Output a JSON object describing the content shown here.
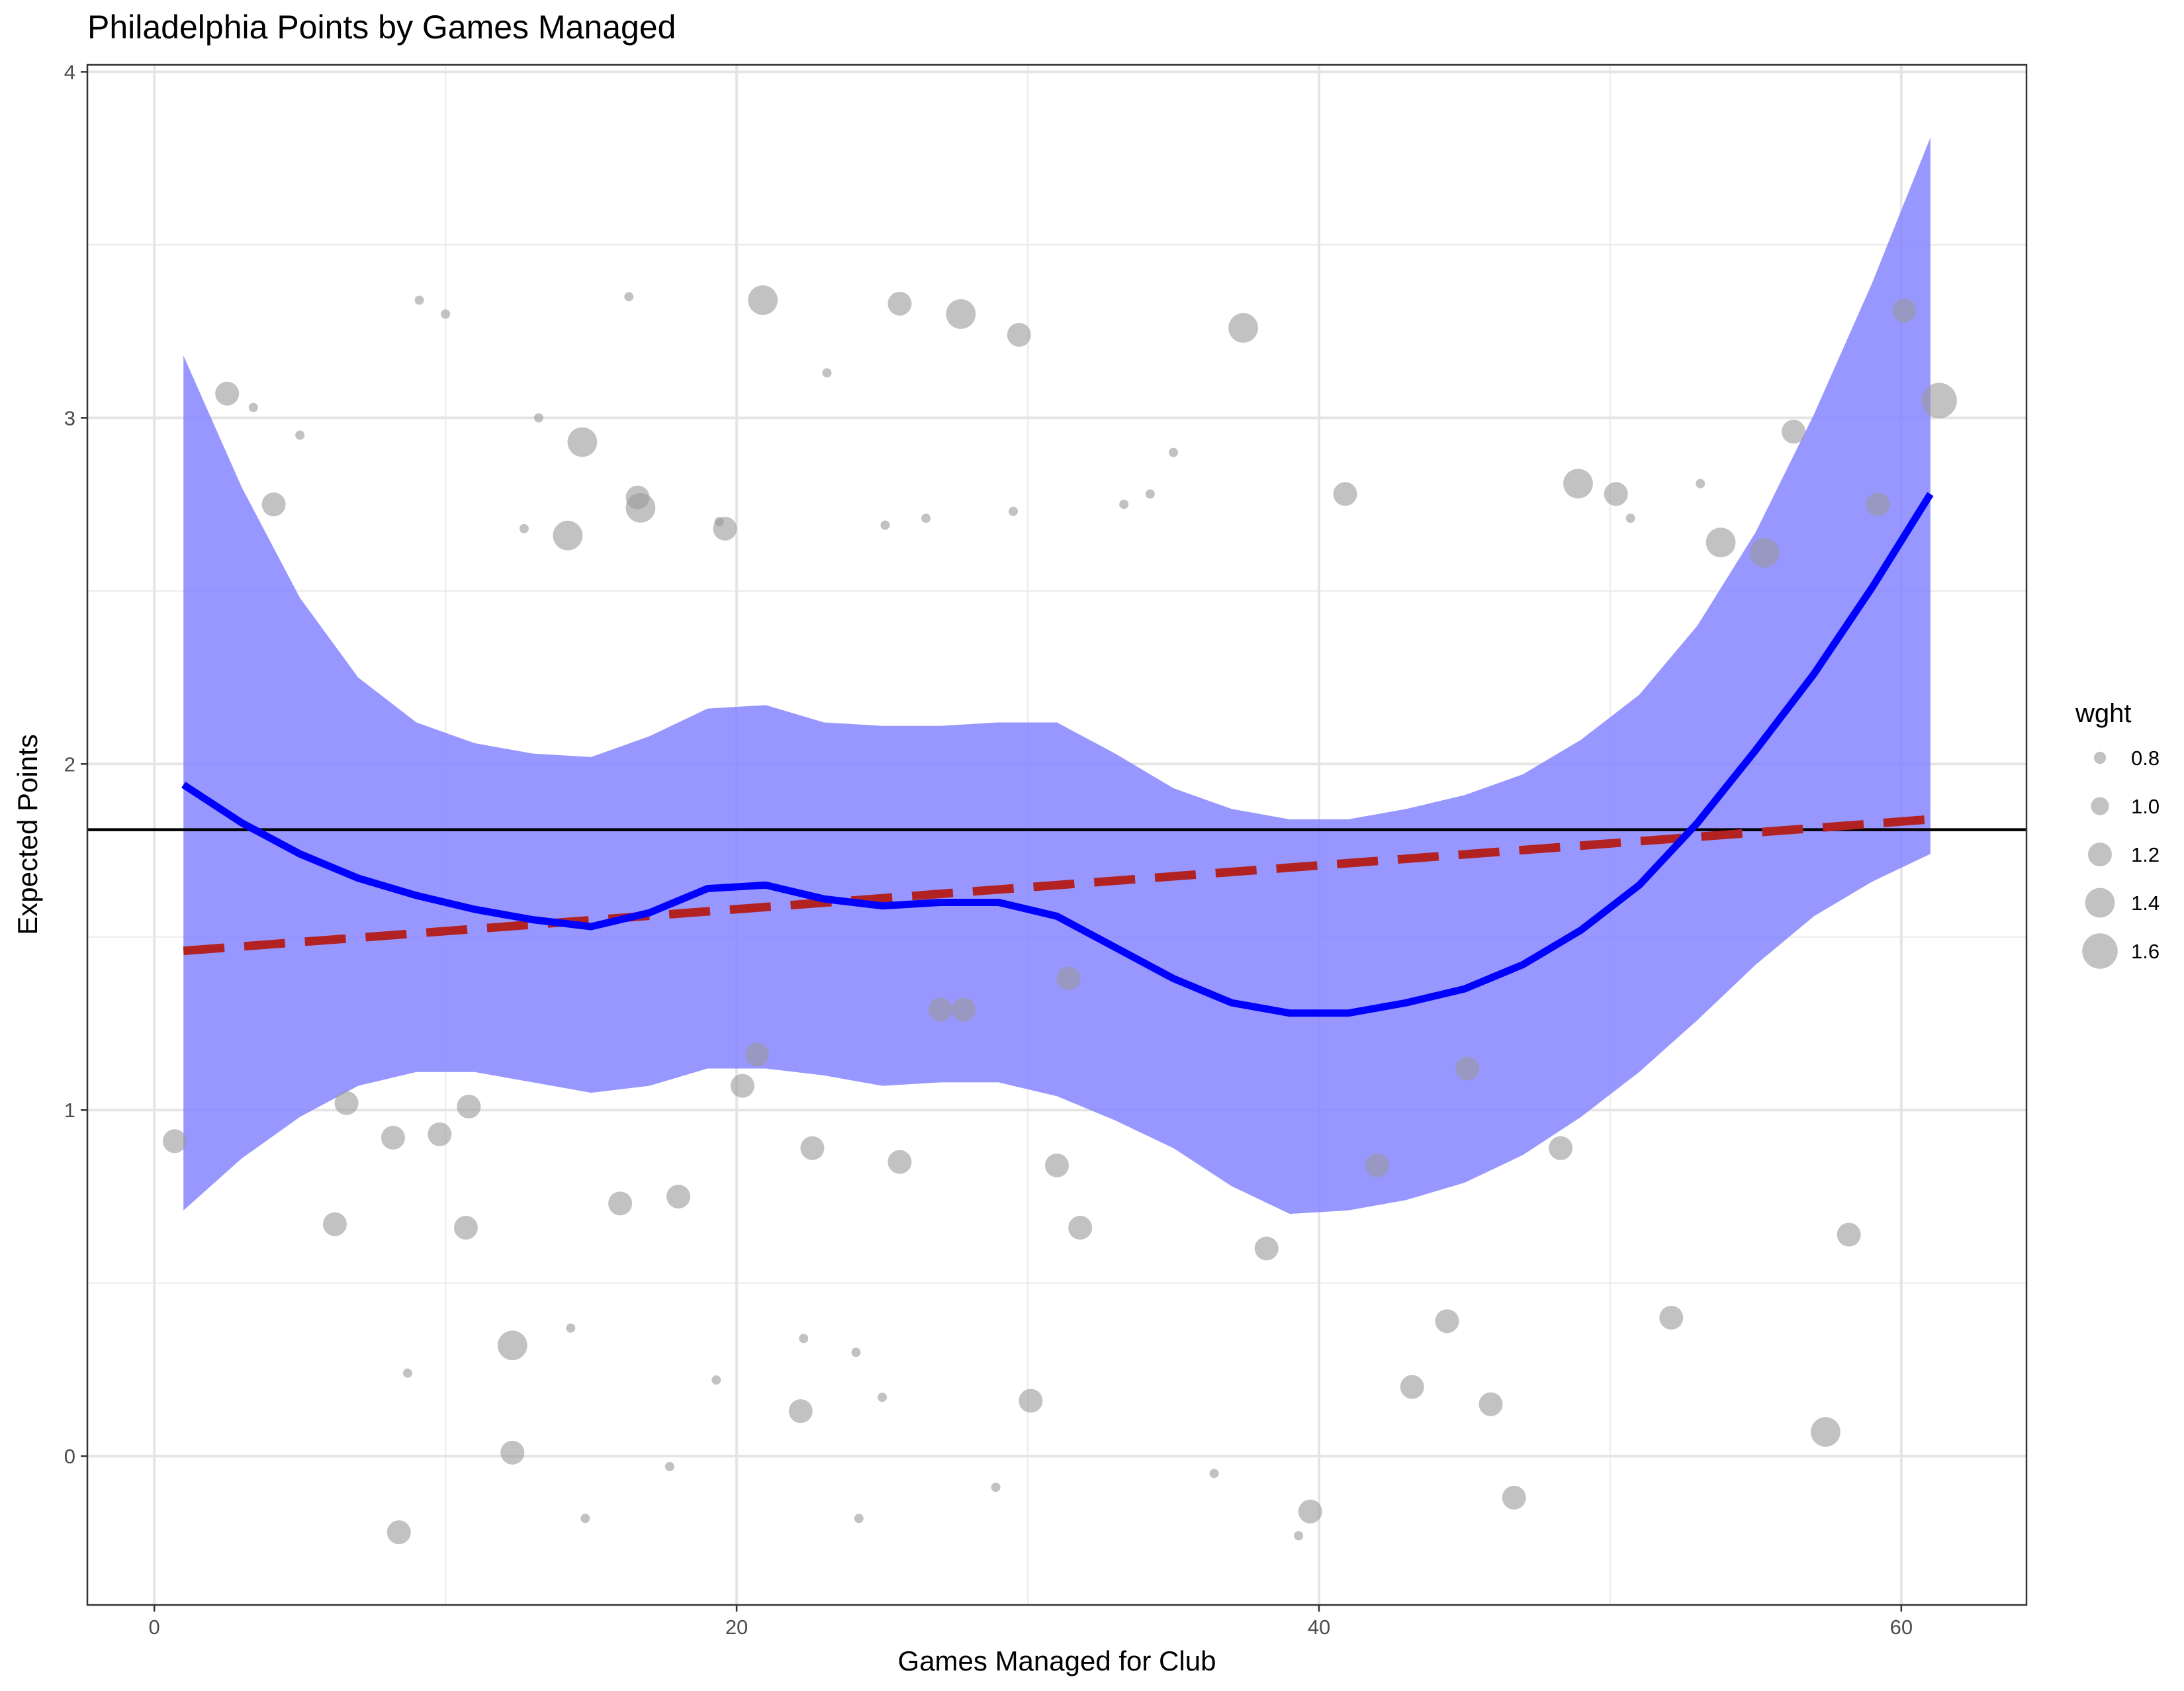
{
  "chart_data": {
    "type": "scatter",
    "title": "Philadelphia Points by Games Managed",
    "xlabel": "Games Managed for Club",
    "ylabel": "Expected Points",
    "xlim": [
      -2.3,
      64.3
    ],
    "ylim": [
      -0.43,
      4.02
    ],
    "x_ticks": [
      0,
      20,
      40,
      60
    ],
    "y_ticks": [
      0,
      1,
      2,
      3,
      4
    ],
    "grid": true,
    "colors": {
      "points": "#999999",
      "smooth_line": "#0000ff",
      "confidence_band": "#8080ff",
      "trend_line": "#b22222",
      "reference_line": "#000000"
    },
    "points": [
      {
        "x": 0.7,
        "y": 0.91,
        "w": 1.2
      },
      {
        "x": 2.5,
        "y": 3.07,
        "w": 1.2
      },
      {
        "x": 3.4,
        "y": 3.03,
        "w": 0.7
      },
      {
        "x": 4.1,
        "y": 2.75,
        "w": 1.2
      },
      {
        "x": 5.0,
        "y": 2.95,
        "w": 0.7
      },
      {
        "x": 6.2,
        "y": 0.67,
        "w": 1.2
      },
      {
        "x": 6.6,
        "y": 1.02,
        "w": 1.2
      },
      {
        "x": 8.2,
        "y": 0.92,
        "w": 1.2
      },
      {
        "x": 8.4,
        "y": -0.22,
        "w": 1.2
      },
      {
        "x": 8.7,
        "y": 0.24,
        "w": 0.7
      },
      {
        "x": 9.1,
        "y": 3.34,
        "w": 0.7
      },
      {
        "x": 9.8,
        "y": 0.93,
        "w": 1.2
      },
      {
        "x": 10.0,
        "y": 3.3,
        "w": 0.7
      },
      {
        "x": 10.7,
        "y": 0.66,
        "w": 1.2
      },
      {
        "x": 10.8,
        "y": 1.01,
        "w": 1.2
      },
      {
        "x": 12.3,
        "y": 0.32,
        "w": 1.4
      },
      {
        "x": 12.3,
        "y": 0.01,
        "w": 1.2
      },
      {
        "x": 12.7,
        "y": 2.68,
        "w": 0.7
      },
      {
        "x": 13.2,
        "y": 3.0,
        "w": 0.7
      },
      {
        "x": 14.2,
        "y": 2.66,
        "w": 1.4
      },
      {
        "x": 14.3,
        "y": 0.37,
        "w": 0.7
      },
      {
        "x": 14.7,
        "y": 2.93,
        "w": 1.4
      },
      {
        "x": 14.8,
        "y": -0.18,
        "w": 0.7
      },
      {
        "x": 16.0,
        "y": 0.73,
        "w": 1.2
      },
      {
        "x": 16.3,
        "y": 3.35,
        "w": 0.7
      },
      {
        "x": 16.6,
        "y": 2.77,
        "w": 1.2
      },
      {
        "x": 16.7,
        "y": 2.74,
        "w": 1.4
      },
      {
        "x": 17.7,
        "y": -0.03,
        "w": 0.7
      },
      {
        "x": 18.0,
        "y": 0.75,
        "w": 1.2
      },
      {
        "x": 19.3,
        "y": 0.22,
        "w": 0.7
      },
      {
        "x": 19.4,
        "y": 2.7,
        "w": 0.7
      },
      {
        "x": 19.6,
        "y": 2.68,
        "w": 1.2
      },
      {
        "x": 20.2,
        "y": 1.07,
        "w": 1.2
      },
      {
        "x": 20.7,
        "y": 1.16,
        "w": 1.2
      },
      {
        "x": 20.9,
        "y": 3.34,
        "w": 1.4
      },
      {
        "x": 22.2,
        "y": 0.13,
        "w": 1.2
      },
      {
        "x": 22.3,
        "y": 0.34,
        "w": 0.7
      },
      {
        "x": 22.6,
        "y": 0.89,
        "w": 1.2
      },
      {
        "x": 23.1,
        "y": 3.13,
        "w": 0.7
      },
      {
        "x": 24.1,
        "y": 0.3,
        "w": 0.7
      },
      {
        "x": 24.2,
        "y": -0.18,
        "w": 0.7
      },
      {
        "x": 25.0,
        "y": 0.17,
        "w": 0.7
      },
      {
        "x": 25.1,
        "y": 2.69,
        "w": 0.7
      },
      {
        "x": 25.6,
        "y": 0.85,
        "w": 1.2
      },
      {
        "x": 25.6,
        "y": 3.33,
        "w": 1.2
      },
      {
        "x": 26.5,
        "y": 2.71,
        "w": 0.7
      },
      {
        "x": 27.0,
        "y": 1.29,
        "w": 1.2
      },
      {
        "x": 27.7,
        "y": 3.3,
        "w": 1.4
      },
      {
        "x": 27.8,
        "y": 1.29,
        "w": 1.2
      },
      {
        "x": 28.9,
        "y": -0.09,
        "w": 0.7
      },
      {
        "x": 29.5,
        "y": 2.73,
        "w": 0.7
      },
      {
        "x": 29.7,
        "y": 3.24,
        "w": 1.2
      },
      {
        "x": 30.1,
        "y": 0.16,
        "w": 1.2
      },
      {
        "x": 31.0,
        "y": 0.84,
        "w": 1.2
      },
      {
        "x": 31.4,
        "y": 1.38,
        "w": 1.2
      },
      {
        "x": 31.8,
        "y": 0.66,
        "w": 1.2
      },
      {
        "x": 33.3,
        "y": 2.75,
        "w": 0.7
      },
      {
        "x": 34.2,
        "y": 2.78,
        "w": 0.7
      },
      {
        "x": 35.0,
        "y": 2.9,
        "w": 0.7
      },
      {
        "x": 36.4,
        "y": -0.05,
        "w": 0.7
      },
      {
        "x": 37.4,
        "y": 3.26,
        "w": 1.4
      },
      {
        "x": 38.2,
        "y": 0.6,
        "w": 1.2
      },
      {
        "x": 39.3,
        "y": -0.23,
        "w": 0.7
      },
      {
        "x": 39.7,
        "y": -0.16,
        "w": 1.2
      },
      {
        "x": 40.9,
        "y": 2.78,
        "w": 1.2
      },
      {
        "x": 42.0,
        "y": 0.84,
        "w": 1.2
      },
      {
        "x": 43.2,
        "y": 0.2,
        "w": 1.2
      },
      {
        "x": 44.4,
        "y": 0.39,
        "w": 1.2
      },
      {
        "x": 45.1,
        "y": 1.12,
        "w": 1.2
      },
      {
        "x": 45.9,
        "y": 0.15,
        "w": 1.2
      },
      {
        "x": 46.7,
        "y": -0.12,
        "w": 1.2
      },
      {
        "x": 48.3,
        "y": 0.89,
        "w": 1.2
      },
      {
        "x": 48.9,
        "y": 2.81,
        "w": 1.4
      },
      {
        "x": 50.2,
        "y": 2.78,
        "w": 1.2
      },
      {
        "x": 50.7,
        "y": 2.71,
        "w": 0.7
      },
      {
        "x": 52.1,
        "y": 0.4,
        "w": 1.2
      },
      {
        "x": 53.1,
        "y": 2.81,
        "w": 0.7
      },
      {
        "x": 53.8,
        "y": 2.64,
        "w": 1.4
      },
      {
        "x": 55.3,
        "y": 2.61,
        "w": 1.4
      },
      {
        "x": 56.3,
        "y": 2.96,
        "w": 1.2
      },
      {
        "x": 57.4,
        "y": 0.07,
        "w": 1.4
      },
      {
        "x": 58.2,
        "y": 0.64,
        "w": 1.2
      },
      {
        "x": 59.2,
        "y": 2.75,
        "w": 1.2
      },
      {
        "x": 60.1,
        "y": 3.31,
        "w": 1.2
      },
      {
        "x": 61.3,
        "y": 3.05,
        "w": 1.6
      }
    ],
    "smooth": [
      {
        "x": 1.0,
        "y": 1.94,
        "lo": 0.71,
        "hi": 3.18
      },
      {
        "x": 3.0,
        "y": 1.83,
        "lo": 0.86,
        "hi": 2.8
      },
      {
        "x": 5.0,
        "y": 1.74,
        "lo": 0.98,
        "hi": 2.48
      },
      {
        "x": 7.0,
        "y": 1.67,
        "lo": 1.07,
        "hi": 2.25
      },
      {
        "x": 9.0,
        "y": 1.62,
        "lo": 1.11,
        "hi": 2.12
      },
      {
        "x": 11.0,
        "y": 1.58,
        "lo": 1.11,
        "hi": 2.06
      },
      {
        "x": 13.0,
        "y": 1.55,
        "lo": 1.08,
        "hi": 2.03
      },
      {
        "x": 15.0,
        "y": 1.53,
        "lo": 1.05,
        "hi": 2.02
      },
      {
        "x": 17.0,
        "y": 1.57,
        "lo": 1.07,
        "hi": 2.08
      },
      {
        "x": 19.0,
        "y": 1.64,
        "lo": 1.12,
        "hi": 2.16
      },
      {
        "x": 21.0,
        "y": 1.65,
        "lo": 1.12,
        "hi": 2.17
      },
      {
        "x": 23.0,
        "y": 1.61,
        "lo": 1.1,
        "hi": 2.12
      },
      {
        "x": 25.0,
        "y": 1.59,
        "lo": 1.07,
        "hi": 2.11
      },
      {
        "x": 27.0,
        "y": 1.6,
        "lo": 1.08,
        "hi": 2.11
      },
      {
        "x": 29.0,
        "y": 1.6,
        "lo": 1.08,
        "hi": 2.12
      },
      {
        "x": 31.0,
        "y": 1.56,
        "lo": 1.04,
        "hi": 2.12
      },
      {
        "x": 33.0,
        "y": 1.47,
        "lo": 0.97,
        "hi": 2.03
      },
      {
        "x": 35.0,
        "y": 1.38,
        "lo": 0.89,
        "hi": 1.93
      },
      {
        "x": 37.0,
        "y": 1.31,
        "lo": 0.78,
        "hi": 1.87
      },
      {
        "x": 39.0,
        "y": 1.28,
        "lo": 0.7,
        "hi": 1.84
      },
      {
        "x": 41.0,
        "y": 1.28,
        "lo": 0.71,
        "hi": 1.84
      },
      {
        "x": 43.0,
        "y": 1.31,
        "lo": 0.74,
        "hi": 1.87
      },
      {
        "x": 45.0,
        "y": 1.35,
        "lo": 0.79,
        "hi": 1.91
      },
      {
        "x": 47.0,
        "y": 1.42,
        "lo": 0.87,
        "hi": 1.97
      },
      {
        "x": 49.0,
        "y": 1.52,
        "lo": 0.98,
        "hi": 2.07
      },
      {
        "x": 51.0,
        "y": 1.65,
        "lo": 1.11,
        "hi": 2.2
      },
      {
        "x": 53.0,
        "y": 1.83,
        "lo": 1.26,
        "hi": 2.4
      },
      {
        "x": 55.0,
        "y": 2.04,
        "lo": 1.42,
        "hi": 2.67
      },
      {
        "x": 57.0,
        "y": 2.26,
        "lo": 1.56,
        "hi": 3.01
      },
      {
        "x": 59.0,
        "y": 2.51,
        "lo": 1.66,
        "hi": 3.39
      },
      {
        "x": 61.0,
        "y": 2.78,
        "lo": 1.74,
        "hi": 3.81
      }
    ],
    "trend_line": {
      "x": [
        1.0,
        61.0
      ],
      "y": [
        1.46,
        1.84
      ]
    },
    "reference_line_y": 1.81,
    "legend": {
      "title": "wght",
      "placement": "right",
      "entries": [
        {
          "label": "0.8",
          "value": 0.8
        },
        {
          "label": "1.0",
          "value": 1.0
        },
        {
          "label": "1.2",
          "value": 1.2
        },
        {
          "label": "1.4",
          "value": 1.4
        },
        {
          "label": "1.6",
          "value": 1.6
        }
      ]
    }
  }
}
